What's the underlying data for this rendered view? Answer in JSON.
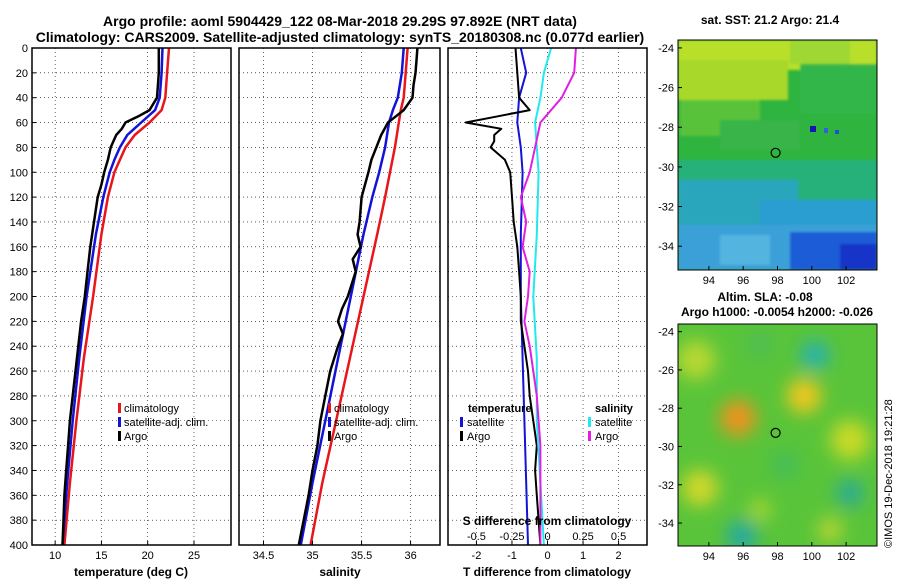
{
  "header": {
    "line1": "Argo profile: aoml 5904429_122 08-Mar-2018 29.29S 97.892E (NRT data)",
    "line2": "Climatology: CARS2009. Satellite-adjusted climatology: synTS_20180308.nc (0.077d earlier)"
  },
  "watermark": "©IMOS 19-Dec-2018 19:21:28",
  "colors": {
    "red": "#e8151b",
    "blue": "#1212d8",
    "black": "#000000",
    "cyan": "#22e8f0",
    "magenta": "#e020e0"
  },
  "chart_data": [
    {
      "id": "temperature",
      "type": "line",
      "xlabel": "temperature (deg C)",
      "ylabel": "",
      "xlim": [
        7.5,
        29
      ],
      "ylim": [
        400,
        0
      ],
      "xticks": [
        "10",
        "15",
        "20",
        "25"
      ],
      "xtick_values": [
        10,
        15,
        20,
        25
      ],
      "yticks": [
        "0",
        "20",
        "40",
        "60",
        "80",
        "100",
        "120",
        "140",
        "160",
        "180",
        "200",
        "220",
        "240",
        "260",
        "280",
        "300",
        "320",
        "340",
        "360",
        "380",
        "400"
      ],
      "ytick_values": [
        0,
        20,
        40,
        60,
        80,
        100,
        120,
        140,
        160,
        180,
        200,
        220,
        240,
        260,
        280,
        300,
        320,
        340,
        360,
        380,
        400
      ],
      "grid": true,
      "legend": {
        "position": "right-middle",
        "entries": [
          "climatology",
          "satellite-adj. clim.",
          "Argo"
        ]
      },
      "series": [
        {
          "name": "climatology",
          "color": "red",
          "width": 2.5,
          "depth": [
            0,
            20,
            40,
            50,
            60,
            70,
            80,
            90,
            100,
            120,
            150,
            200,
            250,
            300,
            350,
            400
          ],
          "x": [
            22.3,
            22.1,
            21.9,
            21.5,
            20.2,
            18.6,
            17.6,
            17.0,
            16.4,
            15.7,
            15.0,
            14.1,
            13.1,
            12.3,
            11.6,
            11.0
          ]
        },
        {
          "name": "satellite-adj. clim.",
          "color": "blue",
          "width": 2.5,
          "depth": [
            0,
            20,
            40,
            50,
            60,
            70,
            80,
            90,
            100,
            120,
            150,
            200,
            250,
            300,
            350,
            400
          ],
          "x": [
            21.6,
            21.5,
            21.3,
            20.8,
            19.3,
            17.8,
            17.0,
            16.4,
            15.9,
            15.2,
            14.4,
            13.4,
            12.6,
            11.9,
            11.3,
            10.8
          ]
        },
        {
          "name": "Argo",
          "color": "black",
          "width": 2.5,
          "depth": [
            0,
            10,
            20,
            30,
            40,
            50,
            55,
            60,
            65,
            70,
            80,
            90,
            100,
            110,
            120,
            140,
            160,
            180,
            200,
            220,
            240,
            260,
            280,
            300,
            320,
            340,
            360,
            380,
            400
          ],
          "x": [
            21.2,
            21.2,
            21.2,
            21.1,
            21.0,
            20.2,
            19.0,
            17.6,
            17.2,
            16.6,
            16.0,
            15.7,
            15.3,
            15.0,
            14.6,
            14.2,
            13.8,
            13.5,
            13.2,
            12.8,
            12.5,
            12.2,
            11.9,
            11.6,
            11.4,
            11.2,
            11.0,
            10.9,
            10.8
          ]
        }
      ]
    },
    {
      "id": "salinity",
      "type": "line",
      "xlabel": "salinity",
      "ylabel": "",
      "xlim": [
        34.25,
        36.3
      ],
      "ylim": [
        400,
        0
      ],
      "xticks": [
        "34.5",
        "35",
        "35.5",
        "36"
      ],
      "xtick_values": [
        34.5,
        35,
        35.5,
        36
      ],
      "grid": true,
      "legend": {
        "position": "right-middle",
        "entries": [
          "climatology",
          "satellite-adj. clim.",
          "Argo"
        ]
      },
      "series": [
        {
          "name": "climatology",
          "color": "red",
          "width": 2.5,
          "depth": [
            0,
            20,
            40,
            50,
            60,
            80,
            100,
            120,
            150,
            200,
            250,
            300,
            350,
            400
          ],
          "x": [
            35.97,
            35.95,
            35.93,
            35.9,
            35.88,
            35.84,
            35.79,
            35.74,
            35.66,
            35.52,
            35.38,
            35.24,
            35.1,
            34.98
          ]
        },
        {
          "name": "satellite-adj. clim.",
          "color": "blue",
          "width": 2.5,
          "depth": [
            0,
            20,
            40,
            50,
            60,
            80,
            100,
            120,
            150,
            200,
            250,
            300,
            350,
            400
          ],
          "x": [
            35.93,
            35.91,
            35.87,
            35.82,
            35.78,
            35.74,
            35.68,
            35.61,
            35.52,
            35.39,
            35.26,
            35.13,
            35.0,
            34.88
          ]
        },
        {
          "name": "Argo",
          "color": "black",
          "width": 2.5,
          "depth": [
            0,
            10,
            20,
            30,
            40,
            50,
            55,
            60,
            70,
            80,
            90,
            100,
            120,
            140,
            150,
            160,
            170,
            180,
            200,
            210,
            220,
            230,
            240,
            260,
            280,
            300,
            320,
            340,
            360,
            380,
            400
          ],
          "x": [
            36.07,
            36.06,
            36.05,
            36.03,
            36.02,
            35.93,
            35.85,
            35.77,
            35.7,
            35.65,
            35.6,
            35.57,
            35.5,
            35.48,
            35.46,
            35.49,
            35.41,
            35.44,
            35.36,
            35.3,
            35.26,
            35.31,
            35.26,
            35.18,
            35.13,
            35.08,
            35.05,
            35.0,
            34.96,
            34.91,
            34.86
          ]
        }
      ]
    },
    {
      "id": "difference",
      "type": "line",
      "xlabel": "T difference from climatology",
      "xlabel_top": "S difference from climatology",
      "xlim": [
        -2.8,
        2.8
      ],
      "ylim": [
        400,
        0
      ],
      "xticks": [
        "-2",
        "-1",
        "0",
        "1",
        "2"
      ],
      "xtick_values": [
        -2,
        -1,
        0,
        1,
        2
      ],
      "xticks_top": [
        "-0.5",
        "-0.25",
        "0",
        "0.25",
        "0.5"
      ],
      "xticks_top_values": [
        -2,
        -1,
        0,
        1,
        2
      ],
      "grid": true,
      "legend": {
        "temperature_title": "temperature",
        "salinity_title": "salinity",
        "entries": [
          "satellite",
          "Argo",
          "satellite",
          "Argo"
        ]
      },
      "series": [
        {
          "name": "T satellite",
          "color": "blue",
          "width": 2,
          "depth": [
            0,
            20,
            40,
            60,
            80,
            100,
            150,
            200,
            250,
            300,
            350,
            400
          ],
          "x": [
            -0.75,
            -0.6,
            -0.8,
            -0.85,
            -0.75,
            -0.7,
            -0.75,
            -0.75,
            -0.7,
            -0.65,
            -0.6,
            -0.55
          ]
        },
        {
          "name": "T Argo",
          "color": "black",
          "width": 2,
          "depth": [
            0,
            20,
            40,
            50,
            55,
            60,
            65,
            70,
            75,
            80,
            90,
            100,
            120,
            140,
            160,
            180,
            200,
            220,
            240,
            260,
            280,
            300,
            320,
            340,
            360,
            380,
            400
          ],
          "x": [
            -0.9,
            -0.85,
            -0.8,
            -0.5,
            -1.4,
            -2.3,
            -1.3,
            -1.5,
            -1.5,
            -1.6,
            -1.2,
            -1.05,
            -1.0,
            -0.95,
            -0.85,
            -0.8,
            -0.75,
            -0.75,
            -0.65,
            -0.55,
            -0.5,
            -0.4,
            -0.3,
            -0.35,
            -0.3,
            -0.25,
            -0.2
          ]
        },
        {
          "name": "S satellite",
          "color": "cyan",
          "width": 2,
          "depth": [
            0,
            20,
            40,
            60,
            80,
            100,
            150,
            200,
            250,
            300,
            350,
            400
          ],
          "x": [
            0.1,
            -0.1,
            -0.2,
            -0.35,
            -0.3,
            -0.25,
            -0.3,
            -0.4,
            -0.3,
            -0.3,
            -0.2,
            -0.1
          ]
        },
        {
          "name": "S Argo",
          "color": "magenta",
          "width": 2,
          "depth": [
            0,
            20,
            40,
            60,
            80,
            100,
            120,
            140,
            160,
            180,
            200,
            220,
            240,
            260,
            280,
            300,
            320,
            340,
            360,
            380,
            400
          ],
          "x": [
            0.8,
            0.75,
            0.4,
            -0.2,
            -0.35,
            -0.5,
            -0.75,
            -0.6,
            -0.7,
            -0.5,
            -0.55,
            -0.65,
            -0.5,
            -0.4,
            -0.3,
            -0.25,
            -0.2,
            -0.2,
            -0.2,
            -0.2,
            -0.2
          ]
        }
      ]
    },
    {
      "id": "sst-map",
      "type": "heatmap",
      "title": "sat. SST: 21.2 Argo: 21.4",
      "xticks": [
        "94",
        "96",
        "98",
        "100",
        "102"
      ],
      "yticks": [
        "-24",
        "-26",
        "-28",
        "-30",
        "-32",
        "-34"
      ],
      "xlim": [
        92.2,
        103.8
      ],
      "ylim": [
        -35.2,
        -23.6
      ],
      "marker": {
        "lon": 97.89,
        "lat": -29.29
      }
    },
    {
      "id": "sla-map",
      "type": "heatmap",
      "title_line1": "Altim. SLA: -0.08",
      "title_line2": "Argo h1000: -0.0054 h2000: -0.026",
      "xticks": [
        "94",
        "96",
        "98",
        "100",
        "102"
      ],
      "yticks": [
        "-24",
        "-26",
        "-28",
        "-30",
        "-32",
        "-34"
      ],
      "xlim": [
        92.2,
        103.8
      ],
      "ylim": [
        -35.2,
        -23.6
      ],
      "marker": {
        "lon": 97.89,
        "lat": -29.29
      }
    }
  ]
}
